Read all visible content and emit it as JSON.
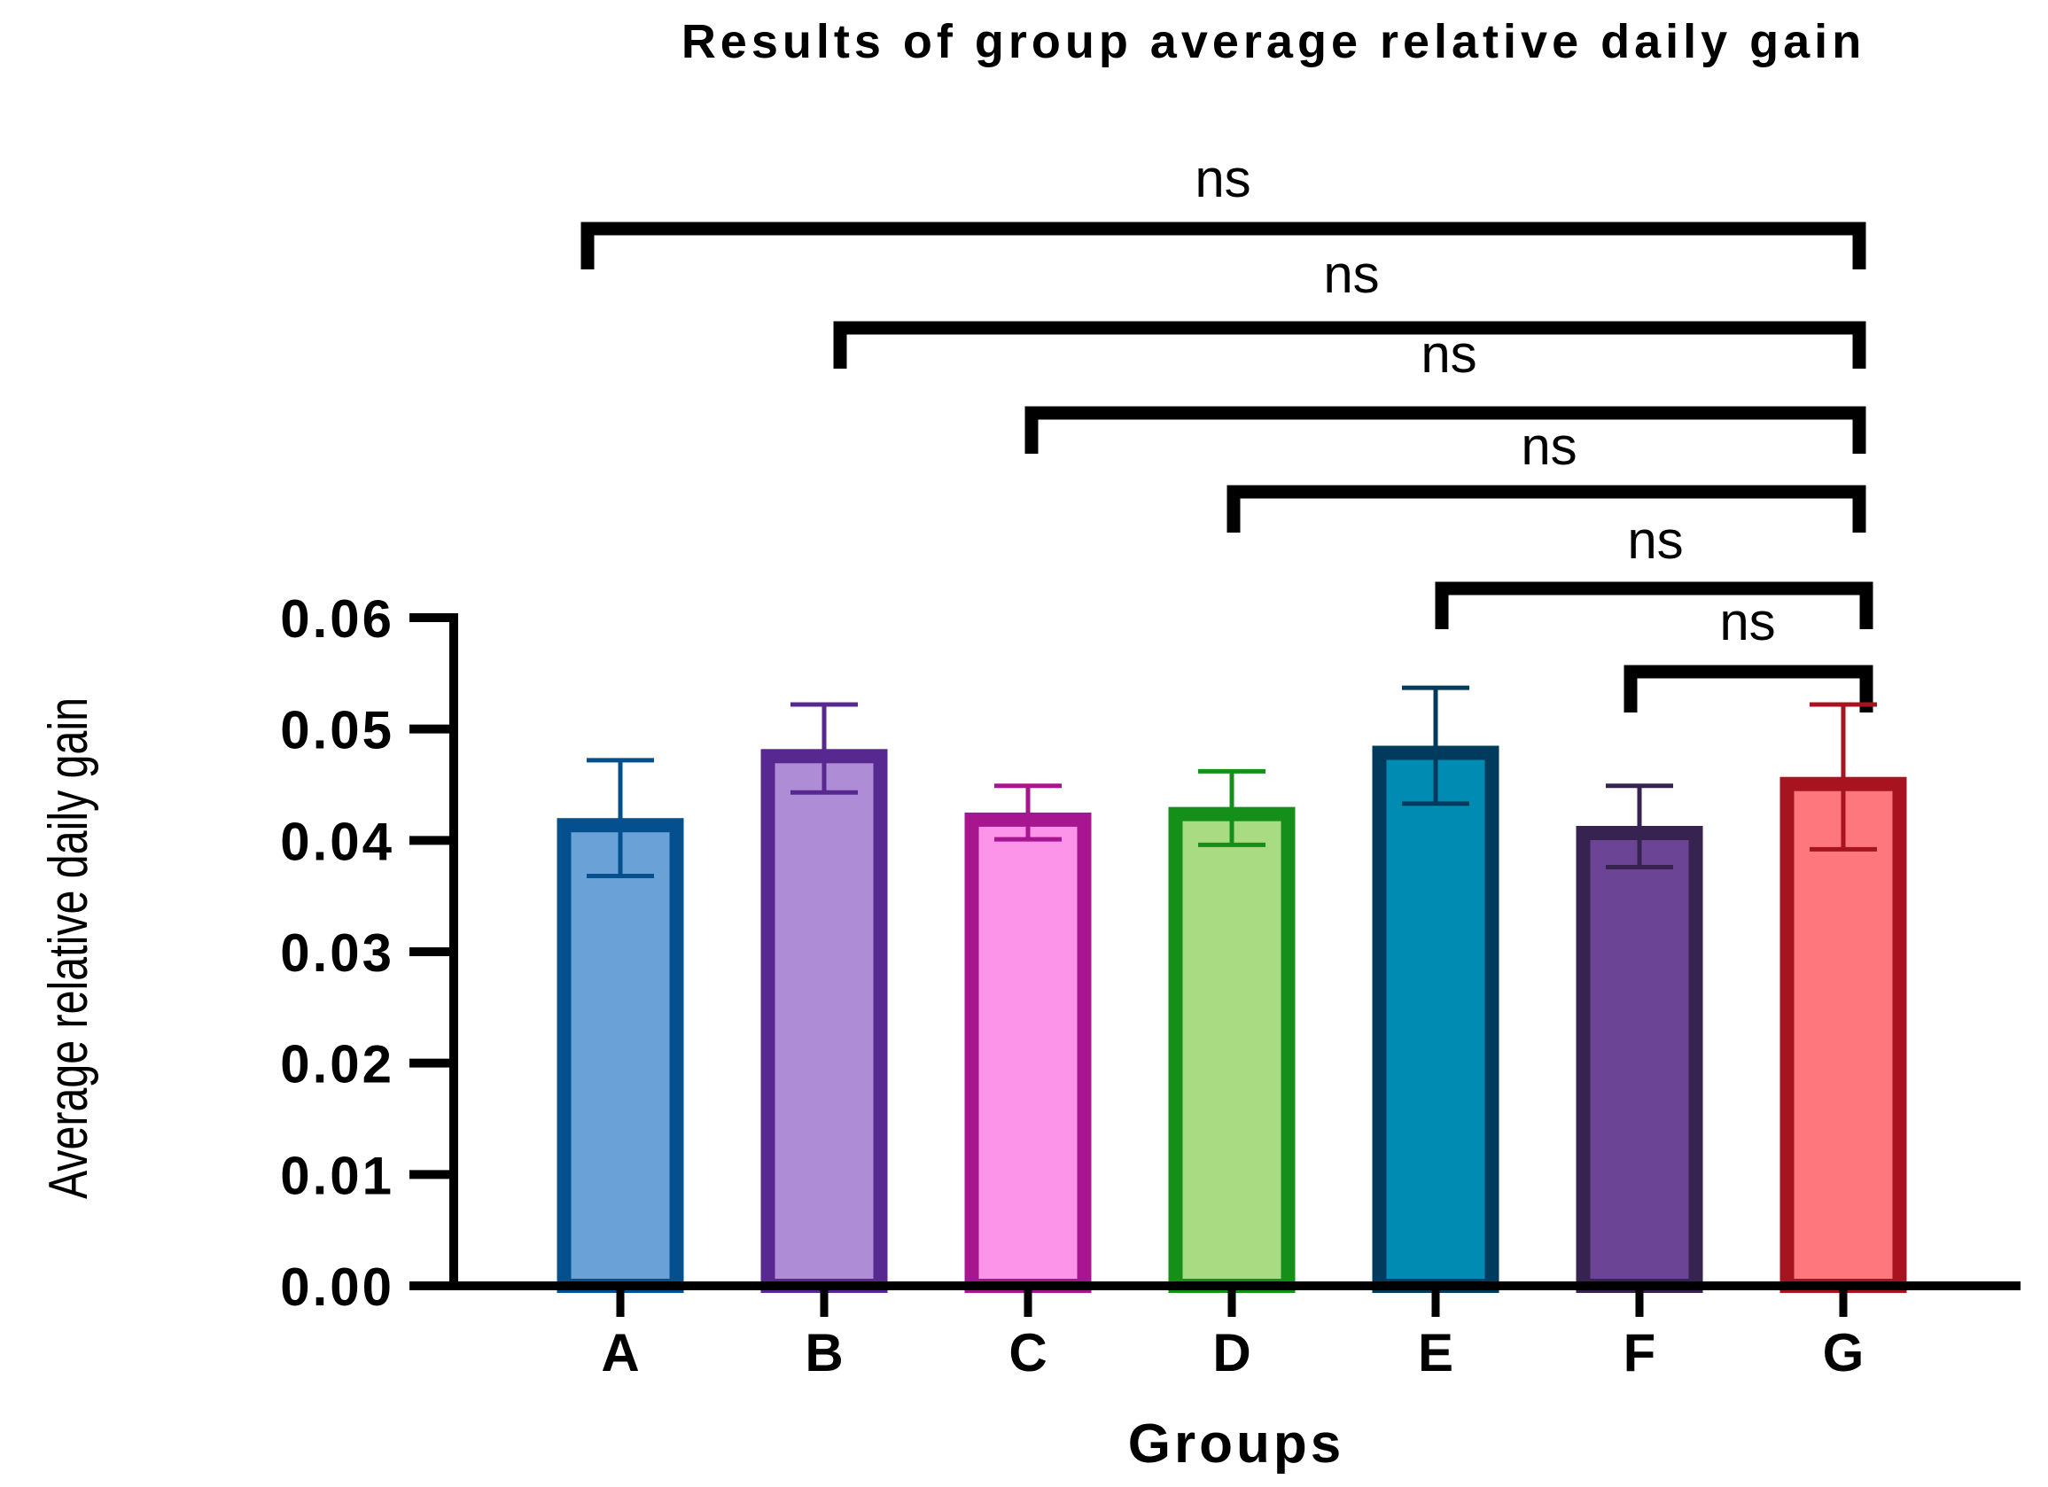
{
  "chart_data": {
    "type": "bar",
    "title": "Results of group average relative daily gain",
    "xlabel": "Groups",
    "ylabel": "Average relative daily gain",
    "ylim": [
      0,
      0.06
    ],
    "yticks": [
      "0.00",
      "0.01",
      "0.02",
      "0.03",
      "0.04",
      "0.05",
      "0.06"
    ],
    "categories": [
      "A",
      "B",
      "C",
      "D",
      "E",
      "F",
      "G"
    ],
    "values": [
      0.042,
      0.0482,
      0.0425,
      0.043,
      0.0485,
      0.0413,
      0.0457
    ],
    "error_upper": [
      0.0472,
      0.0522,
      0.0449,
      0.0462,
      0.0537,
      0.0449,
      0.0522
    ],
    "error_lower": [
      0.0368,
      0.0443,
      0.0401,
      0.0396,
      0.0433,
      0.0376,
      0.0392
    ],
    "fill_colors": [
      "#6aa2d8",
      "#ae8cd6",
      "#fc94e9",
      "#a9dc82",
      "#008bb3",
      "#6b4496",
      "#fd777c"
    ],
    "edge_colors": [
      "#04508f",
      "#582891",
      "#a7158f",
      "#14901a",
      "#003b5d",
      "#37234f",
      "#a7131f"
    ],
    "comparisons": [
      {
        "from": "A",
        "to": "G",
        "label": "ns"
      },
      {
        "from": "B",
        "to": "G",
        "label": "ns"
      },
      {
        "from": "C",
        "to": "G",
        "label": "ns"
      },
      {
        "from": "D",
        "to": "G",
        "label": "ns"
      },
      {
        "from": "E",
        "to": "G",
        "label": "ns"
      },
      {
        "from": "F",
        "to": "G",
        "label": "ns"
      }
    ],
    "grid": false,
    "legend": "none"
  }
}
